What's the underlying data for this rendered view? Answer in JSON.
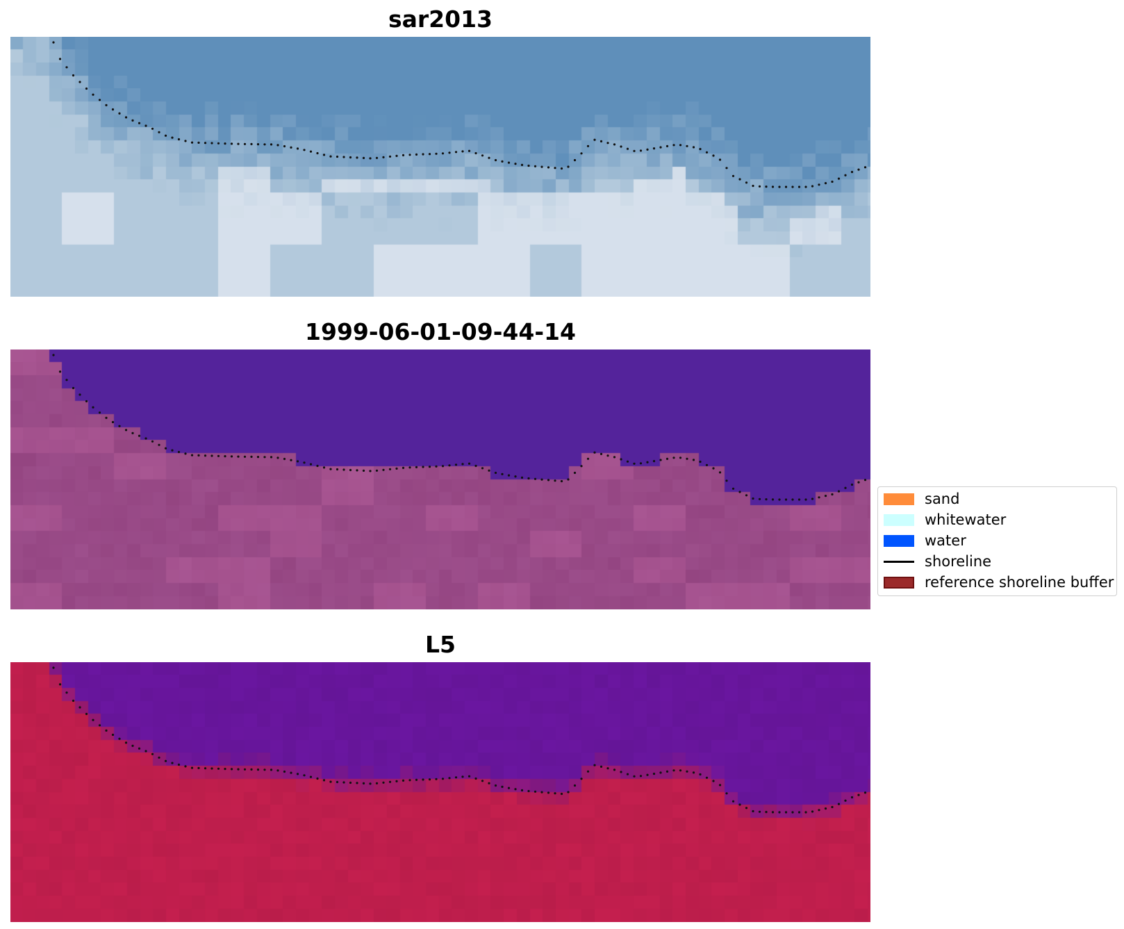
{
  "panels": [
    {
      "id": "rgb",
      "title": "sar2013"
    },
    {
      "id": "classified",
      "title": "1999-06-01-09-44-14"
    },
    {
      "id": "index",
      "title": "L5"
    }
  ],
  "legend": {
    "items": [
      {
        "label": "sand",
        "kind": "patch",
        "color": "#ff8c3a"
      },
      {
        "label": "whitewater",
        "kind": "patch",
        "color": "#ccffff"
      },
      {
        "label": "water",
        "kind": "patch",
        "color": "#0055ff"
      },
      {
        "label": "shoreline",
        "kind": "line",
        "color": "#000000"
      },
      {
        "label": "reference shoreline buffer",
        "kind": "patch",
        "color": "#9b2a2a",
        "edge": "#6e1010"
      }
    ]
  },
  "colors": {
    "rgb_water": "#5f8fba",
    "rgb_land": "#c8d8e4",
    "class_water": "#54239b",
    "class_land": "#9d4f8c",
    "index_water": "#6a16a0",
    "index_land": "#c41f4e",
    "shoreline": "#111111"
  }
}
